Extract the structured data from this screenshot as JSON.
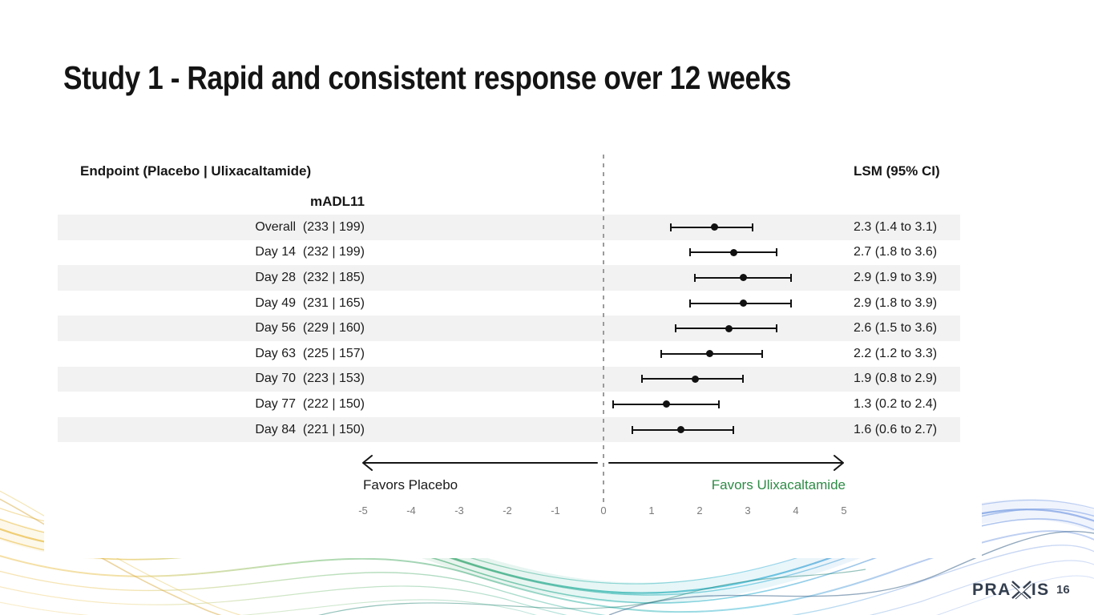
{
  "slide": {
    "title": "Study 1 - Rapid and consistent response over 12 weeks",
    "page_number": "16",
    "logo_text_left": "PRA",
    "logo_text_right": "IS"
  },
  "chart_data": {
    "type": "forest",
    "title": "Study 1 - Rapid and consistent response over 12 weeks",
    "col_header_left": "Endpoint (Placebo | Ulixacaltamide)",
    "col_header_right": "LSM (95% CI)",
    "group_label": "mADL11",
    "rows": [
      {
        "label": "Overall",
        "counts": "(233 | 199)",
        "lsm": 2.3,
        "lo": 1.4,
        "hi": 3.1,
        "ci_text": "2.3 (1.4 to 3.1)"
      },
      {
        "label": "Day 14",
        "counts": "(232 | 199)",
        "lsm": 2.7,
        "lo": 1.8,
        "hi": 3.6,
        "ci_text": "2.7 (1.8 to 3.6)"
      },
      {
        "label": "Day 28",
        "counts": "(232 | 185)",
        "lsm": 2.9,
        "lo": 1.9,
        "hi": 3.9,
        "ci_text": "2.9 (1.9 to 3.9)"
      },
      {
        "label": "Day 49",
        "counts": "(231 | 165)",
        "lsm": 2.9,
        "lo": 1.8,
        "hi": 3.9,
        "ci_text": "2.9 (1.8 to 3.9)"
      },
      {
        "label": "Day 56",
        "counts": "(229 | 160)",
        "lsm": 2.6,
        "lo": 1.5,
        "hi": 3.6,
        "ci_text": "2.6 (1.5 to 3.6)"
      },
      {
        "label": "Day 63",
        "counts": "(225 | 157)",
        "lsm": 2.2,
        "lo": 1.2,
        "hi": 3.3,
        "ci_text": "2.2 (1.2 to 3.3)"
      },
      {
        "label": "Day 70",
        "counts": "(223 | 153)",
        "lsm": 1.9,
        "lo": 0.8,
        "hi": 2.9,
        "ci_text": "1.9 (0.8 to 2.9)"
      },
      {
        "label": "Day 77",
        "counts": "(222 | 150)",
        "lsm": 1.3,
        "lo": 0.2,
        "hi": 2.4,
        "ci_text": "1.3 (0.2 to 2.4)"
      },
      {
        "label": "Day 84",
        "counts": "(221 | 150)",
        "lsm": 1.6,
        "lo": 0.6,
        "hi": 2.7,
        "ci_text": "1.6 (0.6 to 2.7)"
      }
    ],
    "axis": {
      "min": -5,
      "max": 5,
      "ticks": [
        -5,
        -4,
        -3,
        -2,
        -1,
        0,
        1,
        2,
        3,
        4,
        5
      ],
      "zero_line": 0
    },
    "favors_left": "Favors Placebo",
    "favors_right": "Favors Ulixacaltamide",
    "favors_right_color": "#2e8b46",
    "marker_color": "#111111",
    "band_color": "#f2f2f2"
  }
}
